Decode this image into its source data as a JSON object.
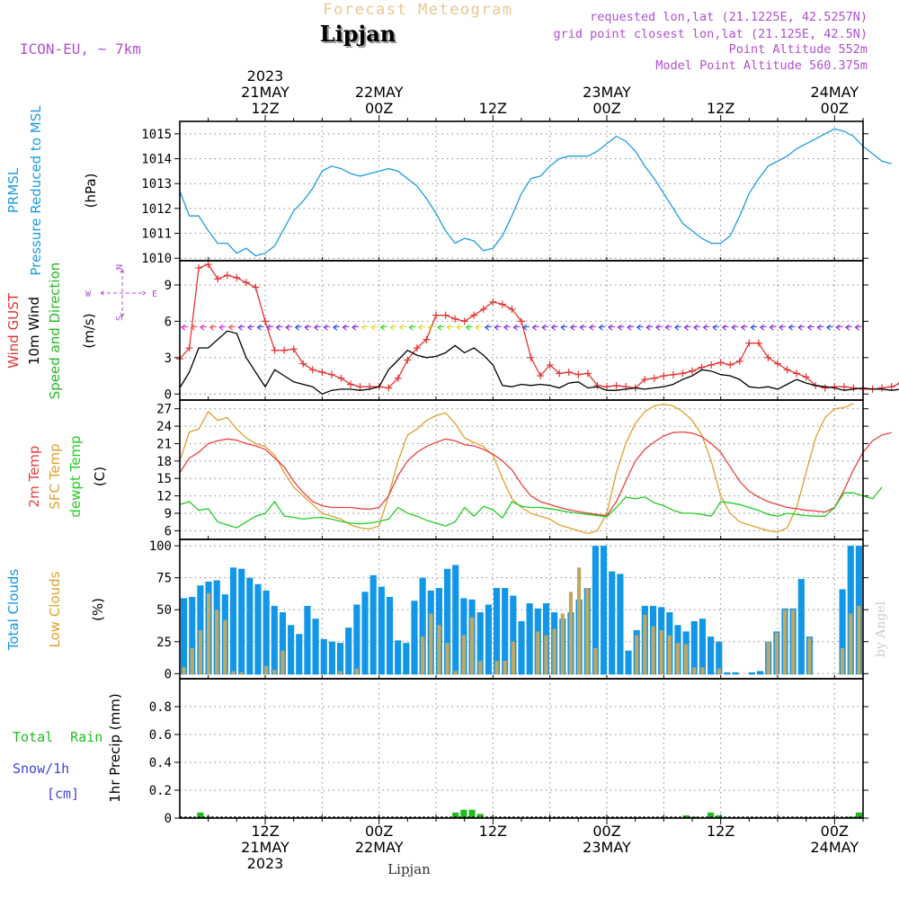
{
  "header": {
    "title": "Lipjan",
    "subtitle": "Forecast Meteogram",
    "model": "ICON-EU, ~ 7km",
    "requested": "requested lon,lat (21.1225E, 42.5257N)",
    "gridpoint": "grid point closest lon,lat (21.125E, 42.5N)",
    "point_alt": "Point Altitude 552m",
    "model_alt": "Model Point Altitude 560.375m",
    "footer": "Lipjan",
    "credit": "by Angel"
  },
  "time_axis": {
    "start": "2023-05-21T03:00Z",
    "step_hours": 1,
    "hours": 72,
    "top_labels": [
      {
        "hour": 9,
        "lines": [
          "2023",
          "21MAY",
          "12Z"
        ]
      },
      {
        "hour": 21,
        "lines": [
          "22MAY",
          "00Z"
        ]
      },
      {
        "hour": 33,
        "lines": [
          "12Z"
        ]
      },
      {
        "hour": 45,
        "lines": [
          "23MAY",
          "00Z"
        ]
      },
      {
        "hour": 57,
        "lines": [
          "12Z"
        ]
      },
      {
        "hour": 69,
        "lines": [
          "24MAY",
          "00Z"
        ]
      }
    ],
    "bottom_labels": [
      {
        "hour": 9,
        "lines": [
          "12Z",
          "21MAY",
          "2023"
        ]
      },
      {
        "hour": 21,
        "lines": [
          "00Z",
          "22MAY"
        ]
      },
      {
        "hour": 33,
        "lines": [
          "12Z"
        ]
      },
      {
        "hour": 45,
        "lines": [
          "00Z",
          "23MAY"
        ]
      },
      {
        "hour": 57,
        "lines": [
          "12Z"
        ]
      },
      {
        "hour": 69,
        "lines": [
          "00Z",
          "24MAY"
        ]
      }
    ]
  },
  "colors": {
    "pressure": "#1e9be0",
    "gust": "#e33333",
    "wind": "#000000",
    "dir_label": "#22bb22",
    "t2m": "#e84040",
    "sfc": "#e0a030",
    "dewpt": "#22cc22",
    "total_clouds": "#1196e8",
    "low_clouds": "#c0a860",
    "rain": "#22bb22",
    "snow": "#4444dd",
    "header_purple": "#b050d0",
    "subtitle": "#e8c890"
  },
  "chart_data": [
    {
      "type": "line",
      "panel": "pressure",
      "ylabel_lines": [
        "PRMSL",
        "Pressure Reduced to MSL"
      ],
      "unit": "(hPa)",
      "ylim": [
        1009.9,
        1015.5
      ],
      "yticks": [
        1010,
        1011,
        1012,
        1013,
        1014,
        1015
      ],
      "series": [
        {
          "values": [
            1012.7,
            1011.7,
            1011.7,
            1011.1,
            1010.6,
            1010.6,
            1010.2,
            1010.4,
            1010.1,
            1010.2,
            1010.5,
            1011.2,
            1011.9,
            1012.3,
            1012.8,
            1013.5,
            1013.7,
            1013.6,
            1013.4,
            1013.3,
            1013.4,
            1013.5,
            1013.6,
            1013.5,
            1013.2,
            1012.9,
            1012.4,
            1011.8,
            1011.1,
            1010.6,
            1010.8,
            1010.7,
            1010.3,
            1010.4,
            1010.9,
            1011.7,
            1012.6,
            1013.2,
            1013.3,
            1013.7,
            1014.0,
            1014.1,
            1014.1,
            1014.1,
            1014.3,
            1014.6,
            1014.9,
            1014.7,
            1014.3,
            1013.7,
            1013.2,
            1012.6,
            1012.0,
            1011.4,
            1011.1,
            1010.8,
            1010.6,
            1010.6,
            1010.9,
            1011.7,
            1012.6,
            1013.2,
            1013.7,
            1013.9,
            1014.1,
            1014.4,
            1014.6,
            1014.8,
            1015.0,
            1015.2,
            1015.1,
            1014.9,
            1014.5,
            1014.2,
            1013.9,
            1013.8
          ]
        }
      ]
    },
    {
      "type": "line",
      "panel": "wind",
      "ylabel_lines": [
        "Wind GUST",
        "10m Wind",
        "Speed and Direction"
      ],
      "unit": "(m/s)",
      "ylim": [
        -0.5,
        11
      ],
      "yticks": [
        0,
        3,
        6,
        9
      ],
      "compass": {
        "n": "N",
        "s": "S",
        "w": "W",
        "e": "E"
      },
      "series": [
        {
          "name": "Wind GUST",
          "values": [
            2.9,
            3.8,
            10.4,
            10.7,
            9.5,
            9.8,
            9.6,
            9.2,
            8.8,
            6.0,
            3.6,
            3.6,
            3.7,
            2.5,
            2.0,
            1.8,
            1.6,
            1.3,
            0.8,
            0.6,
            0.6,
            0.6,
            0.5,
            1.3,
            2.8,
            3.8,
            4.5,
            6.5,
            6.5,
            6.2,
            6.0,
            6.5,
            7.0,
            7.6,
            7.4,
            7.0,
            6.0,
            3.0,
            1.5,
            2.4,
            1.7,
            1.8,
            1.6,
            1.7,
            0.7,
            0.6,
            0.7,
            0.6,
            0.5,
            1.2,
            1.3,
            1.5,
            1.6,
            1.7,
            1.9,
            2.2,
            2.4,
            2.6,
            2.4,
            2.7,
            4.2,
            4.2,
            3.0,
            2.5,
            2.0,
            1.7,
            1.4,
            0.7,
            0.5,
            0.6,
            0.6,
            0.5,
            0.4,
            0.4,
            0.5,
            0.6,
            0.9,
            1.2,
            1.5,
            1.8,
            2.2,
            1.6,
            4.2
          ]
        },
        {
          "name": "10m Wind",
          "values": [
            0.5,
            1.8,
            3.8,
            3.8,
            4.5,
            5.2,
            5.0,
            3.0,
            1.8,
            0.6,
            2.0,
            1.5,
            1.0,
            0.8,
            0.6,
            0.0,
            0.3,
            0.4,
            0.4,
            0.3,
            0.4,
            0.6,
            2.0,
            2.8,
            3.6,
            3.2,
            3.0,
            3.1,
            3.4,
            4.0,
            3.4,
            3.8,
            3.2,
            2.4,
            0.7,
            0.6,
            0.8,
            0.7,
            0.8,
            0.7,
            0.5,
            0.9,
            1.0,
            0.5,
            0.6,
            0.3,
            0.3,
            0.4,
            0.5,
            0.4,
            0.5,
            0.6,
            0.8,
            1.2,
            1.5,
            2.0,
            1.9,
            1.6,
            1.5,
            1.2,
            0.6,
            0.5,
            0.6,
            0.4,
            0.8,
            1.2,
            0.9,
            0.7,
            0.6,
            0.5,
            0.3,
            0.4,
            0.5,
            0.4,
            0.4,
            0.3,
            0.4,
            0.4,
            0.6,
            1.1
          ]
        }
      ]
    },
    {
      "type": "line",
      "panel": "temperature",
      "ylabel_lines": [
        "2m Temp",
        "SFC Temp",
        "dewpt Temp"
      ],
      "unit": "(C)",
      "ylim": [
        4.5,
        28.5
      ],
      "yticks": [
        6,
        9,
        12,
        15,
        18,
        21,
        24,
        27
      ],
      "series": [
        {
          "name": "2m Temp",
          "values": [
            16.0,
            18.5,
            19.5,
            21.0,
            21.5,
            21.8,
            21.6,
            21.0,
            20.6,
            20.0,
            18.5,
            17.0,
            14.5,
            12.6,
            11.0,
            10.3,
            10.0,
            10.0,
            10.0,
            9.8,
            9.7,
            10.0,
            12.0,
            15.5,
            18.0,
            19.5,
            20.5,
            21.2,
            21.8,
            21.5,
            20.8,
            20.6,
            20.0,
            19.2,
            18.0,
            16.5,
            14.0,
            12.0,
            11.0,
            10.5,
            10.0,
            9.6,
            9.3,
            9.0,
            8.8,
            8.6,
            11.0,
            14.5,
            18.0,
            20.0,
            21.3,
            22.3,
            22.9,
            23.0,
            22.8,
            22.2,
            21.0,
            19.5,
            17.0,
            14.5,
            12.8,
            11.8,
            11.0,
            10.5,
            10.0,
            9.8,
            9.5,
            9.4,
            9.2,
            10.0,
            13.0,
            16.5,
            19.5,
            21.5,
            22.5,
            22.9
          ]
        },
        {
          "name": "SFC Temp",
          "values": [
            18.0,
            23.0,
            23.5,
            26.5,
            25.0,
            25.5,
            23.5,
            22.0,
            21.0,
            20.5,
            19.0,
            16.0,
            13.5,
            12.0,
            10.5,
            9.0,
            8.5,
            8.0,
            7.0,
            6.5,
            6.3,
            6.8,
            12.0,
            18.0,
            22.5,
            23.5,
            25.0,
            25.8,
            26.3,
            24.5,
            22.0,
            21.2,
            20.5,
            19.0,
            15.0,
            11.5,
            10.0,
            9.0,
            8.5,
            8.0,
            7.0,
            6.5,
            6.0,
            5.5,
            6.0,
            9.0,
            16.0,
            21.0,
            24.5,
            26.5,
            27.5,
            27.8,
            27.5,
            26.5,
            25.0,
            22.5,
            18.0,
            12.0,
            9.0,
            7.5,
            7.0,
            6.5,
            6.0,
            5.8,
            6.5,
            10.0,
            16.0,
            22.0,
            25.5,
            27.0,
            27.2,
            27.9
          ]
        },
        {
          "name": "dewpt Temp",
          "values": [
            10.5,
            11.0,
            9.5,
            9.8,
            7.5,
            7.0,
            6.5,
            7.5,
            8.5,
            9.0,
            11.0,
            8.5,
            8.3,
            8.0,
            8.2,
            8.3,
            8.0,
            7.6,
            7.3,
            7.2,
            7.3,
            7.6,
            8.0,
            10.0,
            9.0,
            8.5,
            7.8,
            7.3,
            6.8,
            7.5,
            10.0,
            8.5,
            10.2,
            9.6,
            8.2,
            11.0,
            10.2,
            10.0,
            10.0,
            9.8,
            9.5,
            9.2,
            9.0,
            8.8,
            8.6,
            8.4,
            10.0,
            11.8,
            11.5,
            11.8,
            10.8,
            10.3,
            9.5,
            9.0,
            9.0,
            8.8,
            8.5,
            11.0,
            10.8,
            10.5,
            10.0,
            9.5,
            8.8,
            8.5,
            9.0,
            8.8,
            8.6,
            8.5,
            8.5,
            10.0,
            12.5,
            12.5,
            12.0,
            11.5,
            13.5
          ]
        }
      ]
    },
    {
      "type": "bar",
      "panel": "clouds",
      "ylabel_lines": [
        "Total Clouds",
        "Low Clouds"
      ],
      "unit": "(%)",
      "ylim": [
        -4,
        105
      ],
      "yticks": [
        0,
        25,
        50,
        75,
        100
      ],
      "series": [
        {
          "name": "Total Clouds",
          "values": [
            59,
            60,
            69,
            72,
            73,
            62,
            83,
            82,
            75,
            70,
            65,
            53,
            48,
            38,
            31,
            53,
            43,
            27,
            25,
            24,
            36,
            54,
            64,
            77,
            68,
            60,
            26,
            24,
            57,
            75,
            65,
            67,
            82,
            85,
            59,
            58,
            48,
            54,
            67,
            67,
            61,
            41,
            55,
            51,
            55,
            48,
            43,
            48,
            58,
            67,
            100,
            100,
            80,
            78,
            18,
            34,
            53,
            53,
            52,
            48,
            38,
            33,
            41,
            43,
            29,
            25,
            1,
            1,
            0,
            1,
            2,
            25,
            33,
            51,
            51,
            74,
            29,
            0,
            0,
            0,
            66,
            100,
            100
          ]
        },
        {
          "name": "Low Clouds",
          "values": [
            5,
            20,
            34,
            63,
            50,
            42,
            2,
            1,
            0,
            0,
            6,
            3,
            18,
            0,
            0,
            0,
            0,
            0,
            0,
            2,
            0,
            4,
            0,
            0,
            0,
            0,
            0,
            0,
            0,
            29,
            47,
            38,
            24,
            2,
            30,
            44,
            10,
            0,
            10,
            10,
            25,
            0,
            0,
            33,
            30,
            35,
            47,
            64,
            83,
            67,
            20,
            0,
            0,
            0,
            0,
            30,
            46,
            37,
            34,
            30,
            24,
            23,
            5,
            5,
            0,
            4,
            0,
            0,
            0,
            0,
            0,
            25,
            32,
            50,
            50,
            0,
            28,
            0,
            0,
            0,
            20,
            47,
            53
          ]
        }
      ]
    },
    {
      "type": "bar",
      "panel": "precip",
      "ylabel_lines": [
        "Total Rain",
        "Snow/1h",
        "[cm]"
      ],
      "unit": "1hr Precip (mm)",
      "ylim": [
        0,
        1.0
      ],
      "yticks": [
        0,
        0.2,
        0.4,
        0.6,
        0.8
      ],
      "series": [
        {
          "name": "Total Rain",
          "values": [
            0,
            0,
            0.04,
            0.01,
            0,
            0,
            0,
            0,
            0,
            0,
            0,
            0,
            0,
            0,
            0,
            0,
            0,
            0,
            0,
            0,
            0,
            0,
            0,
            0,
            0,
            0,
            0,
            0,
            0,
            0,
            0,
            0,
            0,
            0.04,
            0.06,
            0.06,
            0.03,
            0,
            0,
            0,
            0,
            0,
            0,
            0,
            0,
            0,
            0,
            0,
            0,
            0,
            0,
            0,
            0,
            0,
            0,
            0,
            0,
            0,
            0,
            0,
            0,
            0.02,
            0.01,
            0,
            0.04,
            0.02,
            0,
            0,
            0,
            0,
            0,
            0,
            0,
            0,
            0,
            0,
            0,
            0,
            0,
            0,
            0,
            0.01,
            0.04
          ]
        }
      ]
    }
  ]
}
